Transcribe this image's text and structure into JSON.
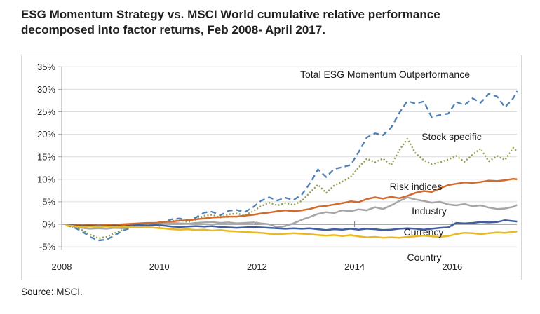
{
  "page": {
    "title": "ESG Momentum Strategy vs. MSCI World cumulative relative performance decomposed into factor returns, Feb 2008- April 2017.",
    "source": "Source: MSCI."
  },
  "chart_data": {
    "type": "line",
    "title": "ESG Momentum Strategy vs. MSCI World cumulative relative performance decomposed into factor returns, Feb 2008- April 2017.",
    "source": "Source: MSCI.",
    "xlabel": "",
    "ylabel": "",
    "grid": true,
    "legend_position": "in-plot text labels",
    "x_axis": {
      "range": [
        2008,
        2017.42
      ],
      "ticks": [
        2008,
        2010,
        2012,
        2014,
        2016
      ],
      "tick_labels": [
        "2008",
        "2010",
        "2012",
        "2014",
        "2016"
      ]
    },
    "y_axis": {
      "range": [
        -5,
        35
      ],
      "ticks": [
        35,
        30,
        25,
        20,
        15,
        10,
        5,
        0,
        -5
      ],
      "tick_labels": [
        "35%",
        "30%",
        "25%",
        "20%",
        "15%",
        "10%",
        "5%",
        "0%",
        "-5%"
      ]
    },
    "x": [
      2008.08,
      2008.25,
      2008.42,
      2008.58,
      2008.75,
      2008.92,
      2009.08,
      2009.25,
      2009.42,
      2009.58,
      2009.75,
      2009.92,
      2010.08,
      2010.25,
      2010.42,
      2010.58,
      2010.75,
      2010.92,
      2011.08,
      2011.25,
      2011.42,
      2011.58,
      2011.75,
      2011.92,
      2012.08,
      2012.25,
      2012.42,
      2012.58,
      2012.75,
      2012.92,
      2013.08,
      2013.25,
      2013.42,
      2013.58,
      2013.75,
      2013.92,
      2014.08,
      2014.25,
      2014.42,
      2014.58,
      2014.75,
      2014.92,
      2015.08,
      2015.25,
      2015.42,
      2015.58,
      2015.75,
      2015.92,
      2016.08,
      2016.25,
      2016.42,
      2016.58,
      2016.75,
      2016.92,
      2017.08,
      2017.25,
      2017.33
    ],
    "series": [
      {
        "name": "Total ESG Momentum Outperformance",
        "color": "#4e80b8",
        "line_style": "dashed",
        "values": [
          -0.2,
          -0.7,
          -1.6,
          -2.8,
          -3.6,
          -3.4,
          -2.5,
          -1.4,
          -0.8,
          -0.4,
          -0.3,
          0.1,
          0.4,
          1.1,
          1.3,
          0.8,
          1.5,
          2.6,
          2.8,
          2.0,
          3.0,
          3.2,
          2.7,
          3.8,
          5.2,
          6.0,
          5.3,
          5.9,
          5.4,
          6.6,
          9.0,
          12.2,
          10.5,
          12.3,
          12.7,
          13.2,
          16.0,
          19.3,
          20.2,
          19.8,
          21.5,
          24.8,
          27.4,
          26.8,
          27.3,
          23.8,
          24.3,
          24.6,
          27.2,
          26.5,
          28.0,
          27.0,
          29.0,
          28.4,
          26.0,
          28.0,
          29.6
        ]
      },
      {
        "name": "Stock specific",
        "color": "#8ea04e",
        "line_style": "dotted",
        "values": [
          -0.2,
          -0.6,
          -1.3,
          -2.3,
          -3.1,
          -2.8,
          -2.0,
          -1.2,
          -0.7,
          -0.4,
          -0.3,
          0.0,
          0.2,
          0.7,
          0.9,
          0.5,
          1.0,
          1.9,
          2.1,
          1.5,
          2.2,
          2.4,
          2.0,
          2.9,
          4.0,
          4.8,
          4.2,
          4.7,
          4.3,
          5.2,
          7.0,
          8.8,
          7.0,
          8.6,
          9.5,
          10.5,
          12.6,
          14.6,
          13.8,
          14.6,
          13.2,
          16.5,
          19.0,
          15.8,
          14.2,
          13.4,
          13.8,
          14.4,
          15.2,
          13.9,
          15.5,
          16.8,
          14.0,
          15.2,
          14.3,
          17.0,
          16.2
        ]
      },
      {
        "name": "Risk indices",
        "color": "#d26a2c",
        "line_style": "solid",
        "values": [
          -0.1,
          -0.2,
          -0.3,
          -0.2,
          -0.3,
          -0.2,
          -0.1,
          0.0,
          0.1,
          0.2,
          0.3,
          0.3,
          0.5,
          0.6,
          0.8,
          0.9,
          1.1,
          1.3,
          1.5,
          1.6,
          1.7,
          1.7,
          1.9,
          2.1,
          2.4,
          2.6,
          2.9,
          3.1,
          2.9,
          3.1,
          3.4,
          3.9,
          4.1,
          4.4,
          4.7,
          5.1,
          4.9,
          5.6,
          6.0,
          5.7,
          6.1,
          5.8,
          6.3,
          7.0,
          7.4,
          7.2,
          8.0,
          8.7,
          9.0,
          9.3,
          9.2,
          9.4,
          9.7,
          9.6,
          9.8,
          10.1,
          10.0
        ]
      },
      {
        "name": "Industry",
        "color": "#a6a6a6",
        "line_style": "solid",
        "values": [
          -0.1,
          -0.4,
          -0.8,
          -1.0,
          -0.9,
          -1.0,
          -0.8,
          -0.9,
          -0.5,
          -0.3,
          -0.2,
          0.0,
          0.1,
          0.3,
          0.2,
          0.1,
          0.3,
          0.4,
          0.5,
          0.3,
          0.4,
          0.2,
          0.3,
          0.4,
          0.2,
          0.0,
          -0.7,
          -0.4,
          0.2,
          1.0,
          1.6,
          2.3,
          2.7,
          2.5,
          3.1,
          2.9,
          3.3,
          3.1,
          3.8,
          3.4,
          4.2,
          5.2,
          6.0,
          5.5,
          5.2,
          4.8,
          5.0,
          4.4,
          4.2,
          4.5,
          4.0,
          4.2,
          3.7,
          3.4,
          3.5,
          3.9,
          4.3
        ]
      },
      {
        "name": "Currency",
        "color": "#3f5e9e",
        "line_style": "solid",
        "values": [
          -0.1,
          -0.3,
          -0.4,
          -0.3,
          -0.5,
          -0.4,
          -0.3,
          -0.4,
          -0.3,
          -0.2,
          -0.3,
          -0.2,
          -0.3,
          -0.5,
          -0.6,
          -0.5,
          -0.4,
          -0.5,
          -0.4,
          -0.6,
          -0.7,
          -0.8,
          -0.7,
          -0.6,
          -0.7,
          -0.8,
          -0.9,
          -1.0,
          -0.9,
          -1.0,
          -0.9,
          -1.1,
          -1.3,
          -1.1,
          -1.2,
          -1.0,
          -1.2,
          -1.0,
          -1.1,
          -1.3,
          -1.2,
          -1.0,
          -0.9,
          -1.0,
          -1.2,
          -1.0,
          -0.8,
          -0.7,
          0.3,
          0.2,
          0.3,
          0.5,
          0.4,
          0.5,
          0.9,
          0.7,
          0.6
        ]
      },
      {
        "name": "Country",
        "color": "#eab820",
        "line_style": "solid",
        "values": [
          -0.2,
          -0.4,
          -0.6,
          -0.5,
          -0.6,
          -0.5,
          -0.6,
          -0.5,
          -0.6,
          -0.7,
          -0.6,
          -0.8,
          -0.9,
          -1.1,
          -1.2,
          -1.1,
          -1.3,
          -1.2,
          -1.4,
          -1.3,
          -1.5,
          -1.6,
          -1.7,
          -1.8,
          -1.9,
          -2.1,
          -2.2,
          -2.1,
          -2.0,
          -2.1,
          -2.2,
          -2.4,
          -2.5,
          -2.4,
          -2.6,
          -2.4,
          -2.7,
          -2.9,
          -2.8,
          -3.0,
          -2.9,
          -3.0,
          -2.8,
          -2.7,
          -2.5,
          -2.7,
          -2.8,
          -2.6,
          -2.2,
          -1.9,
          -2.0,
          -2.2,
          -2.0,
          -1.8,
          -1.9,
          -1.7,
          -1.6
        ]
      }
    ],
    "annotation_labels": [
      "Total ESG Momentum Outperformance",
      "Stock specific",
      "Risk indices",
      "Industry",
      "Currency",
      "Country"
    ]
  }
}
